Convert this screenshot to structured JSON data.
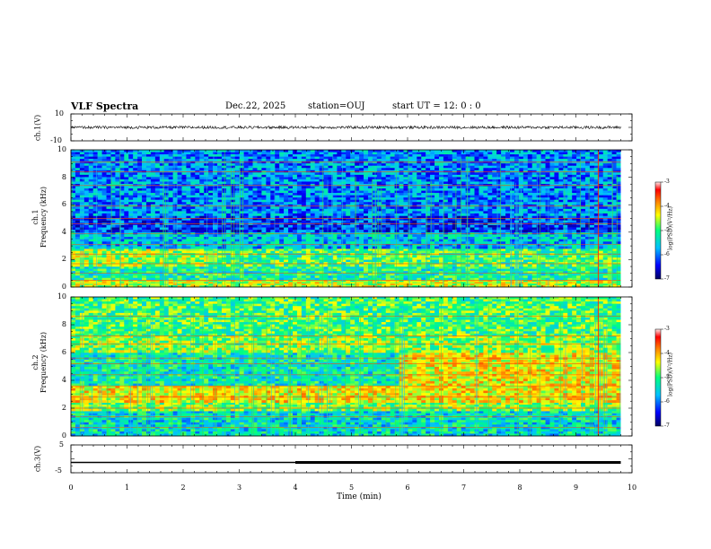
{
  "header": {
    "title": "VLF Spectra",
    "date": "Dec.22, 2025",
    "station": "station=OUJ",
    "start": "start UT =  12: 0  : 0"
  },
  "colors": {
    "background": "#ffffff",
    "axes": "#000000",
    "spectrogram_low": "#0a1a8c",
    "spectrogram_mid": "#20c8e0",
    "spectrogram_high": "#40e040",
    "colormap": [
      "#000060",
      "#0000ff",
      "#00c0ff",
      "#00ff80",
      "#ffff00",
      "#ff8000",
      "#ff0000",
      "#ffffff"
    ]
  },
  "chart_data": [
    {
      "type": "line",
      "panel": "ch1-waveform",
      "ylabel": "ch.1(V)",
      "ylim": [
        -10,
        10
      ],
      "yticks": [
        "10",
        "-10"
      ],
      "x_range": [
        0,
        9.8
      ],
      "series": [
        {
          "level_mean": 0,
          "approx_amplitude": 1
        }
      ]
    },
    {
      "type": "heatmap",
      "panel": "ch1-spectrogram",
      "ylabel": "ch.1\nFrequency (kHz)",
      "ylim": [
        0,
        10
      ],
      "yticks": [
        "0",
        "2",
        "4",
        "6",
        "8",
        "10"
      ],
      "x_range": [
        0,
        9.8
      ],
      "colorbar": {
        "label": "log(PSD)(V²/Hz)",
        "range": [
          -7,
          -3
        ],
        "ticks": [
          "-3",
          "-4",
          "-5",
          "-6",
          "-7"
        ]
      },
      "bands": [
        {
          "f_low": 0.0,
          "f_high": 0.5,
          "level": -4.8
        },
        {
          "f_low": 0.5,
          "f_high": 1.5,
          "level": -5.4
        },
        {
          "f_low": 1.5,
          "f_high": 2.8,
          "level": -4.9
        },
        {
          "f_low": 2.8,
          "f_high": 4.0,
          "level": -5.8
        },
        {
          "f_low": 4.0,
          "f_high": 5.2,
          "level": -6.3
        },
        {
          "f_low": 5.2,
          "f_high": 10.0,
          "level": -6.0
        }
      ],
      "lines_khz": [
        0.5,
        1.0,
        1.7,
        2.4,
        3.1,
        3.9,
        4.6,
        5.0,
        5.9,
        7.4,
        8.4,
        9.1
      ]
    },
    {
      "type": "heatmap",
      "panel": "ch2-spectrogram",
      "ylabel": "ch.2\nFrequency (kHz)",
      "ylim": [
        0,
        10
      ],
      "yticks": [
        "0",
        "2",
        "4",
        "6",
        "8",
        "10"
      ],
      "x_range": [
        0,
        9.8
      ],
      "colorbar": {
        "label": "log(PSD)(V²/Hz)",
        "range": [
          -7,
          -3
        ],
        "ticks": [
          "-3",
          "-4",
          "-5",
          "-6",
          "-7"
        ]
      },
      "bands": [
        {
          "f_low": 0.0,
          "f_high": 1.8,
          "level": -5.6
        },
        {
          "f_low": 1.8,
          "f_high": 2.4,
          "level": -5.0
        },
        {
          "f_low": 2.4,
          "f_high": 3.6,
          "level": -4.6
        },
        {
          "f_low": 3.6,
          "f_high": 6.0,
          "level": -5.5
        },
        {
          "f_low": 6.0,
          "f_high": 7.2,
          "level": -5.0
        },
        {
          "f_low": 7.2,
          "f_high": 10.0,
          "level": -5.2
        }
      ],
      "lines_khz": [
        0.6,
        1.4,
        2.0,
        2.8,
        3.6,
        4.4,
        5.2,
        5.6,
        6.6,
        7.2,
        8.6
      ]
    },
    {
      "type": "line",
      "panel": "ch3-waveform",
      "ylabel": "ch.3(V)",
      "ylim": [
        -5,
        5
      ],
      "yticks": [
        "5",
        "-5"
      ],
      "x_range": [
        0,
        9.8
      ],
      "series": [
        {
          "level_mean": -1.3
        }
      ]
    }
  ],
  "x_axis": {
    "label": "Time (min)",
    "range": [
      0,
      10
    ],
    "ticks": [
      "0",
      "1",
      "2",
      "3",
      "4",
      "5",
      "6",
      "7",
      "8",
      "9",
      "10"
    ]
  }
}
